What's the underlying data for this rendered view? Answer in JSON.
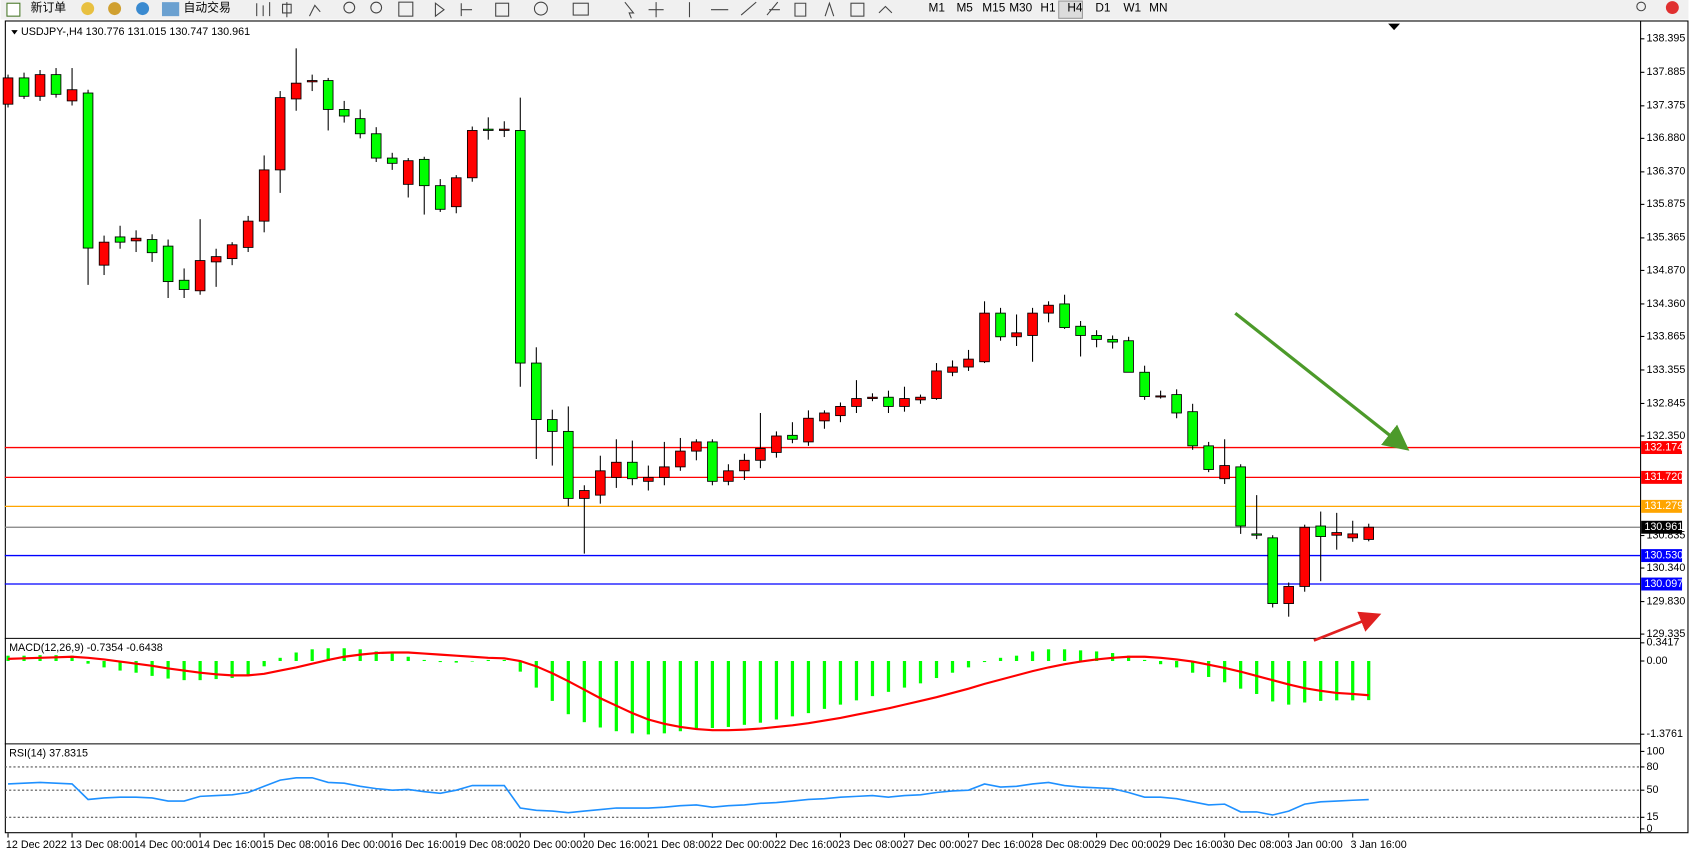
{
  "toolbar": {
    "new_order": "新订单",
    "auto_trading": "自动交易",
    "timeframes": [
      "M1",
      "M5",
      "M15",
      "M30",
      "H1",
      "H4",
      "D1",
      "W1",
      "MN"
    ],
    "active_timeframe": "H4"
  },
  "chart_data": [
    {
      "type": "candlestick",
      "title": "USDJPY-,H4  130.776 131.015 130.747 130.961",
      "categories": [
        "12 Dec 2022",
        null,
        null,
        null,
        "13 Dec 08:00",
        null,
        null,
        null,
        "14 Dec 00:00",
        null,
        null,
        null,
        "14 Dec 16:00",
        null,
        null,
        null,
        "15 Dec 08:00",
        null,
        null,
        null,
        "16 Dec 00:00",
        null,
        null,
        null,
        "16 Dec 16:00",
        null,
        null,
        null,
        "19 Dec 08:00",
        null,
        null,
        null,
        "20 Dec 00:00",
        null,
        null,
        null,
        "20 Dec 16:00",
        null,
        null,
        null,
        "21 Dec 08:00",
        null,
        null,
        null,
        "22 Dec 00:00",
        null,
        null,
        null,
        "22 Dec 16:00",
        null,
        null,
        null,
        "23 Dec 08:00",
        null,
        null,
        null,
        "27 Dec 00:00",
        null,
        null,
        null,
        "27 Dec 16:00",
        null,
        null,
        null,
        "28 Dec 08:00",
        null,
        null,
        null,
        "29 Dec 00:00",
        null,
        null,
        null,
        "29 Dec 16:00",
        null,
        null,
        null,
        "30 Dec 08:00",
        null,
        null,
        null,
        "3 Jan 00:00",
        null,
        null,
        null,
        "3 Jan 16:00",
        null
      ],
      "open": [
        137.4,
        137.8,
        137.52,
        137.85,
        137.45,
        137.57,
        134.95,
        135.38,
        135.32,
        135.34,
        135.24,
        134.72,
        134.56,
        135.0,
        135.05,
        135.22,
        135.62,
        136.4,
        137.48,
        137.74,
        137.76,
        137.32,
        137.18,
        136.95,
        136.58,
        136.18,
        136.56,
        136.16,
        135.84,
        136.28,
        137.02,
        137.0,
        137.0,
        133.46,
        132.6,
        132.42,
        131.4,
        131.45,
        131.72,
        131.95,
        131.66,
        131.72,
        131.88,
        132.12,
        132.26,
        131.66,
        131.82,
        131.98,
        132.1,
        132.36,
        132.26,
        132.58,
        132.66,
        132.8,
        132.92,
        132.94,
        132.8,
        132.9,
        132.92,
        133.32,
        133.4,
        133.48,
        134.22,
        133.86,
        133.88,
        134.22,
        134.36,
        134.02,
        133.88,
        133.82,
        133.8,
        133.32,
        132.95,
        132.98,
        132.72,
        132.2,
        131.7,
        131.88,
        130.86,
        130.8,
        129.8,
        130.06,
        130.98,
        130.84,
        130.8,
        130.776
      ],
      "high": [
        137.85,
        137.88,
        137.92,
        137.95,
        137.95,
        137.62,
        135.4,
        135.55,
        135.48,
        135.42,
        135.34,
        134.9,
        135.65,
        135.2,
        135.3,
        135.7,
        136.62,
        137.6,
        138.25,
        137.85,
        137.8,
        137.45,
        137.32,
        137.05,
        136.66,
        136.58,
        136.6,
        136.26,
        136.32,
        137.06,
        137.2,
        137.14,
        137.5,
        133.7,
        132.75,
        132.8,
        131.6,
        132.05,
        132.3,
        132.28,
        131.9,
        132.26,
        132.32,
        132.3,
        132.3,
        131.92,
        132.08,
        132.7,
        132.42,
        132.56,
        132.74,
        132.74,
        132.86,
        133.2,
        133.0,
        133.04,
        133.1,
        132.98,
        133.46,
        133.5,
        133.66,
        134.4,
        134.3,
        134.2,
        134.3,
        134.4,
        134.5,
        134.1,
        133.96,
        133.88,
        133.86,
        133.42,
        133.04,
        133.06,
        132.84,
        132.26,
        132.3,
        131.92,
        131.45,
        130.84,
        130.12,
        131.0,
        131.2,
        131.18,
        131.06,
        131.015
      ],
      "low": [
        137.35,
        137.48,
        137.45,
        137.5,
        137.38,
        134.65,
        134.8,
        135.2,
        135.15,
        135.0,
        134.45,
        134.45,
        134.5,
        134.62,
        134.95,
        135.15,
        135.45,
        136.05,
        137.3,
        137.6,
        137.0,
        137.12,
        136.88,
        136.52,
        136.4,
        135.98,
        135.72,
        135.76,
        135.74,
        136.22,
        136.86,
        136.9,
        133.1,
        132.0,
        131.9,
        131.28,
        130.56,
        131.32,
        131.56,
        131.6,
        131.52,
        131.6,
        131.82,
        131.98,
        131.6,
        131.6,
        131.68,
        131.86,
        132.02,
        132.24,
        132.2,
        132.46,
        132.56,
        132.7,
        132.88,
        132.7,
        132.72,
        132.84,
        132.9,
        133.26,
        133.34,
        133.46,
        133.8,
        133.72,
        133.48,
        134.08,
        133.98,
        133.56,
        133.7,
        133.68,
        133.36,
        132.9,
        132.92,
        132.62,
        132.14,
        131.8,
        131.62,
        130.86,
        130.78,
        129.74,
        129.6,
        129.98,
        130.14,
        130.62,
        130.74,
        130.747
      ],
      "close": [
        137.8,
        137.52,
        137.85,
        137.55,
        137.62,
        135.21,
        135.3,
        135.3,
        135.36,
        135.14,
        134.7,
        134.58,
        135.02,
        135.08,
        135.26,
        135.62,
        136.4,
        137.5,
        137.72,
        137.76,
        137.32,
        137.22,
        136.95,
        136.58,
        136.5,
        136.54,
        136.16,
        135.8,
        136.28,
        137.0,
        137.0,
        137.02,
        133.46,
        132.6,
        132.42,
        131.4,
        131.52,
        131.82,
        131.95,
        131.7,
        131.72,
        131.88,
        132.12,
        132.26,
        131.66,
        131.82,
        131.98,
        132.16,
        132.35,
        132.3,
        132.62,
        132.7,
        132.8,
        132.92,
        132.94,
        132.8,
        132.92,
        132.94,
        133.34,
        133.4,
        133.52,
        134.22,
        133.86,
        133.92,
        134.22,
        134.34,
        134.0,
        133.88,
        133.82,
        133.78,
        133.32,
        132.95,
        132.96,
        132.7,
        132.2,
        131.84,
        131.9,
        130.98,
        130.84,
        129.8,
        130.06,
        130.96,
        130.82,
        130.88,
        130.86,
        130.961
      ],
      "up_color": "#ff0000",
      "down_color": "#00ff00",
      "wick_color": "#000000",
      "ylim": [
        129.286,
        138.658
      ],
      "yticks": [
        138.395,
        137.885,
        137.375,
        {
          "value": 136.88,
          "label": "136.880"
        },
        {
          "value": 136.37,
          "label": "136.370"
        },
        135.875,
        135.365,
        {
          "value": 134.87,
          "label": "134.870"
        },
        {
          "value": 134.36,
          "label": "134.360"
        },
        133.865,
        133.355,
        132.845,
        {
          "value": 132.35,
          "label": "132.350"
        },
        130.835,
        {
          "value": 130.34,
          "label": "130.340"
        },
        {
          "value": 129.83,
          "label": "129.830"
        },
        129.335
      ],
      "levels": {
        "values": [
          132.174,
          131.72,
          131.279,
          130.961,
          130.53,
          130.097
        ],
        "value_labels": [
          "132.174",
          "131.720",
          "131.279",
          "130.961",
          "130.530",
          "130.097"
        ],
        "colors": [
          "#ff0000",
          "#ff0000",
          "#ffa500",
          "#808080",
          "#0000ff",
          "#0000ff"
        ],
        "label_fills": [
          "#ff0000",
          "#ff0000",
          "#ffa500",
          "#000000",
          "#0000ff",
          "#0000ff"
        ]
      }
    },
    {
      "type": "macd",
      "title": "MACD(12,26,9) -0.7354 -0.6438",
      "histogram": {
        "color": "#00ff00",
        "values": [
          0.1,
          0.1,
          0.11,
          0.11,
          0.1,
          -0.05,
          -0.12,
          -0.18,
          -0.22,
          -0.28,
          -0.33,
          -0.36,
          -0.36,
          -0.34,
          -0.32,
          -0.26,
          -0.1,
          0.06,
          0.16,
          0.22,
          0.24,
          0.24,
          0.22,
          0.18,
          0.14,
          0.08,
          0.02,
          -0.02,
          -0.03,
          0.0,
          0.02,
          0.02,
          -0.2,
          -0.5,
          -0.75,
          -1.0,
          -1.15,
          -1.25,
          -1.32,
          -1.36,
          -1.38,
          -1.36,
          -1.32,
          -1.28,
          -1.26,
          -1.24,
          -1.2,
          -1.16,
          -1.1,
          -1.04,
          -0.98,
          -0.9,
          -0.82,
          -0.74,
          -0.66,
          -0.58,
          -0.5,
          -0.42,
          -0.32,
          -0.22,
          -0.12,
          -0.02,
          0.06,
          0.1,
          0.18,
          0.22,
          0.22,
          0.2,
          0.18,
          0.15,
          0.1,
          0.02,
          -0.06,
          -0.12,
          -0.22,
          -0.3,
          -0.4,
          -0.52,
          -0.62,
          -0.76,
          -0.82,
          -0.78,
          -0.75,
          -0.74,
          -0.74,
          -0.7354
        ]
      },
      "signal": {
        "color": "#ff0000",
        "values": [
          0.04,
          0.05,
          0.06,
          0.07,
          0.08,
          0.06,
          0.03,
          -0.01,
          -0.05,
          -0.09,
          -0.14,
          -0.18,
          -0.22,
          -0.25,
          -0.27,
          -0.27,
          -0.24,
          -0.18,
          -0.12,
          -0.05,
          0.02,
          0.08,
          0.12,
          0.15,
          0.16,
          0.16,
          0.14,
          0.12,
          0.1,
          0.08,
          0.06,
          0.05,
          0.0,
          -0.1,
          -0.23,
          -0.38,
          -0.54,
          -0.7,
          -0.84,
          -0.98,
          -1.1,
          -1.18,
          -1.24,
          -1.28,
          -1.3,
          -1.3,
          -1.29,
          -1.27,
          -1.24,
          -1.21,
          -1.17,
          -1.12,
          -1.07,
          -1.01,
          -0.95,
          -0.89,
          -0.82,
          -0.75,
          -0.68,
          -0.6,
          -0.52,
          -0.43,
          -0.35,
          -0.27,
          -0.19,
          -0.12,
          -0.06,
          -0.01,
          0.03,
          0.06,
          0.08,
          0.08,
          0.06,
          0.03,
          -0.01,
          -0.07,
          -0.13,
          -0.2,
          -0.28,
          -0.36,
          -0.44,
          -0.51,
          -0.56,
          -0.6,
          -0.62,
          -0.6438
        ]
      },
      "ylim": [
        -1.538,
        0.405
      ],
      "yticks": [
        0.3417,
        {
          "value": 0,
          "label": "0.00"
        },
        -1.3761
      ]
    },
    {
      "type": "line",
      "title": "RSI(14) 37.8315",
      "color": "#1e90ff",
      "values": [
        58,
        59,
        60,
        59,
        58,
        38,
        40,
        41,
        41,
        40,
        36,
        36,
        42,
        43,
        44,
        47,
        55,
        63,
        66,
        66,
        60,
        59,
        55,
        52,
        50,
        51,
        48,
        46,
        50,
        56,
        56,
        56,
        27,
        24,
        23,
        21,
        23,
        25,
        27,
        27,
        27,
        28,
        30,
        31,
        28,
        30,
        31,
        33,
        34,
        36,
        38,
        39,
        41,
        42,
        43,
        41,
        43,
        44,
        47,
        49,
        50,
        58,
        54,
        55,
        58,
        60,
        56,
        54,
        53,
        52,
        47,
        41,
        41,
        39,
        35,
        31,
        32,
        22,
        22,
        18,
        23,
        32,
        35,
        36,
        37,
        37.8315
      ],
      "ylim": [
        0,
        100
      ],
      "yticks": [
        100,
        80,
        50,
        15,
        0
      ],
      "levels": [
        80,
        50,
        15
      ]
    }
  ]
}
